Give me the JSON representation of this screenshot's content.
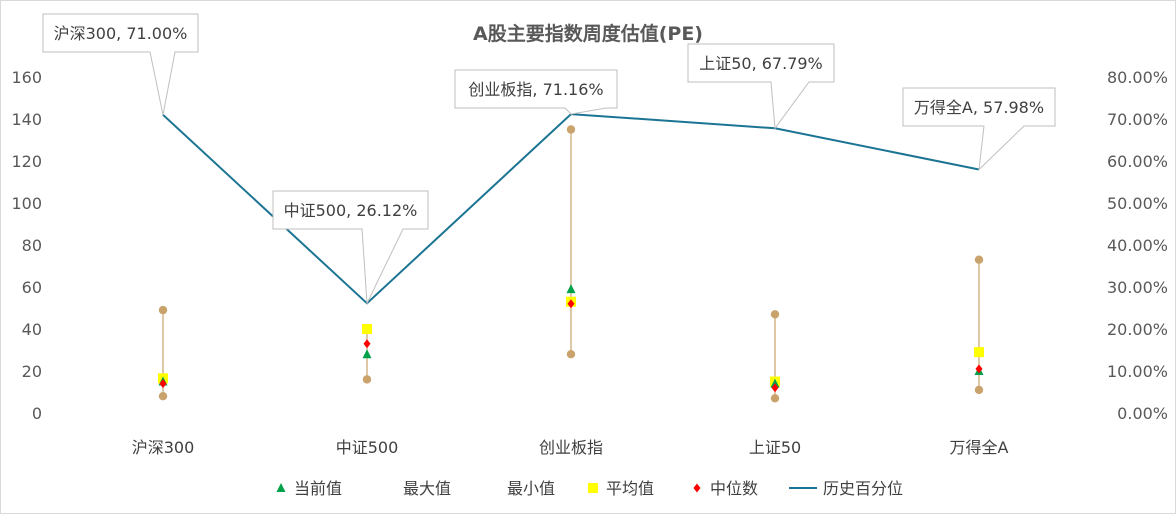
{
  "chart_data": {
    "type": "line",
    "title": "A股主要指数周度估值(PE)",
    "categories": [
      "沪深300",
      "中证500",
      "创业板指",
      "上证50",
      "万得全A"
    ],
    "y_left": {
      "min": 0,
      "max": 160,
      "step": 20,
      "ticks": [
        "0",
        "20",
        "40",
        "60",
        "80",
        "100",
        "120",
        "140",
        "160"
      ]
    },
    "y_right": {
      "min": 0,
      "max": 80,
      "step": 10,
      "ticks": [
        "0.00%",
        "10.00%",
        "20.00%",
        "30.00%",
        "40.00%",
        "50.00%",
        "60.00%",
        "70.00%",
        "80.00%"
      ]
    },
    "series": [
      {
        "name": "当前值",
        "axis": "left",
        "marker": "triangle",
        "color": "#00a14b",
        "values": [
          15,
          28,
          59,
          14,
          20
        ]
      },
      {
        "name": "最大值",
        "axis": "left",
        "marker": "circle",
        "color": "#c9a36b",
        "values": [
          49,
          40,
          135,
          47,
          73
        ]
      },
      {
        "name": "最小值",
        "axis": "left",
        "marker": "circle",
        "color": "#c9a36b",
        "values": [
          8,
          16,
          28,
          7,
          11
        ]
      },
      {
        "name": "平均值",
        "axis": "left",
        "marker": "square",
        "color": "#ffff00",
        "values": [
          16.5,
          40,
          53,
          15,
          29
        ]
      },
      {
        "name": "中位数",
        "axis": "left",
        "marker": "diamond",
        "color": "#ff0000",
        "values": [
          14,
          33,
          52,
          12,
          21
        ]
      },
      {
        "name": "历史百分位",
        "axis": "right",
        "marker": "line",
        "color": "#1b7493",
        "values": [
          71.0,
          26.12,
          71.16,
          67.79,
          57.98
        ]
      }
    ],
    "callouts": [
      "沪深300, 71.00%",
      "中证500, 26.12%",
      "创业板指, 71.16%",
      "上证50, 67.79%",
      "万得全A, 57.98%"
    ],
    "legend": {
      "position": "bottom",
      "items": [
        "当前值",
        "最大值",
        "最小值",
        "平均值",
        "中位数",
        "历史百分位"
      ]
    },
    "range_line_color": "#c9a36b",
    "grid": false
  }
}
